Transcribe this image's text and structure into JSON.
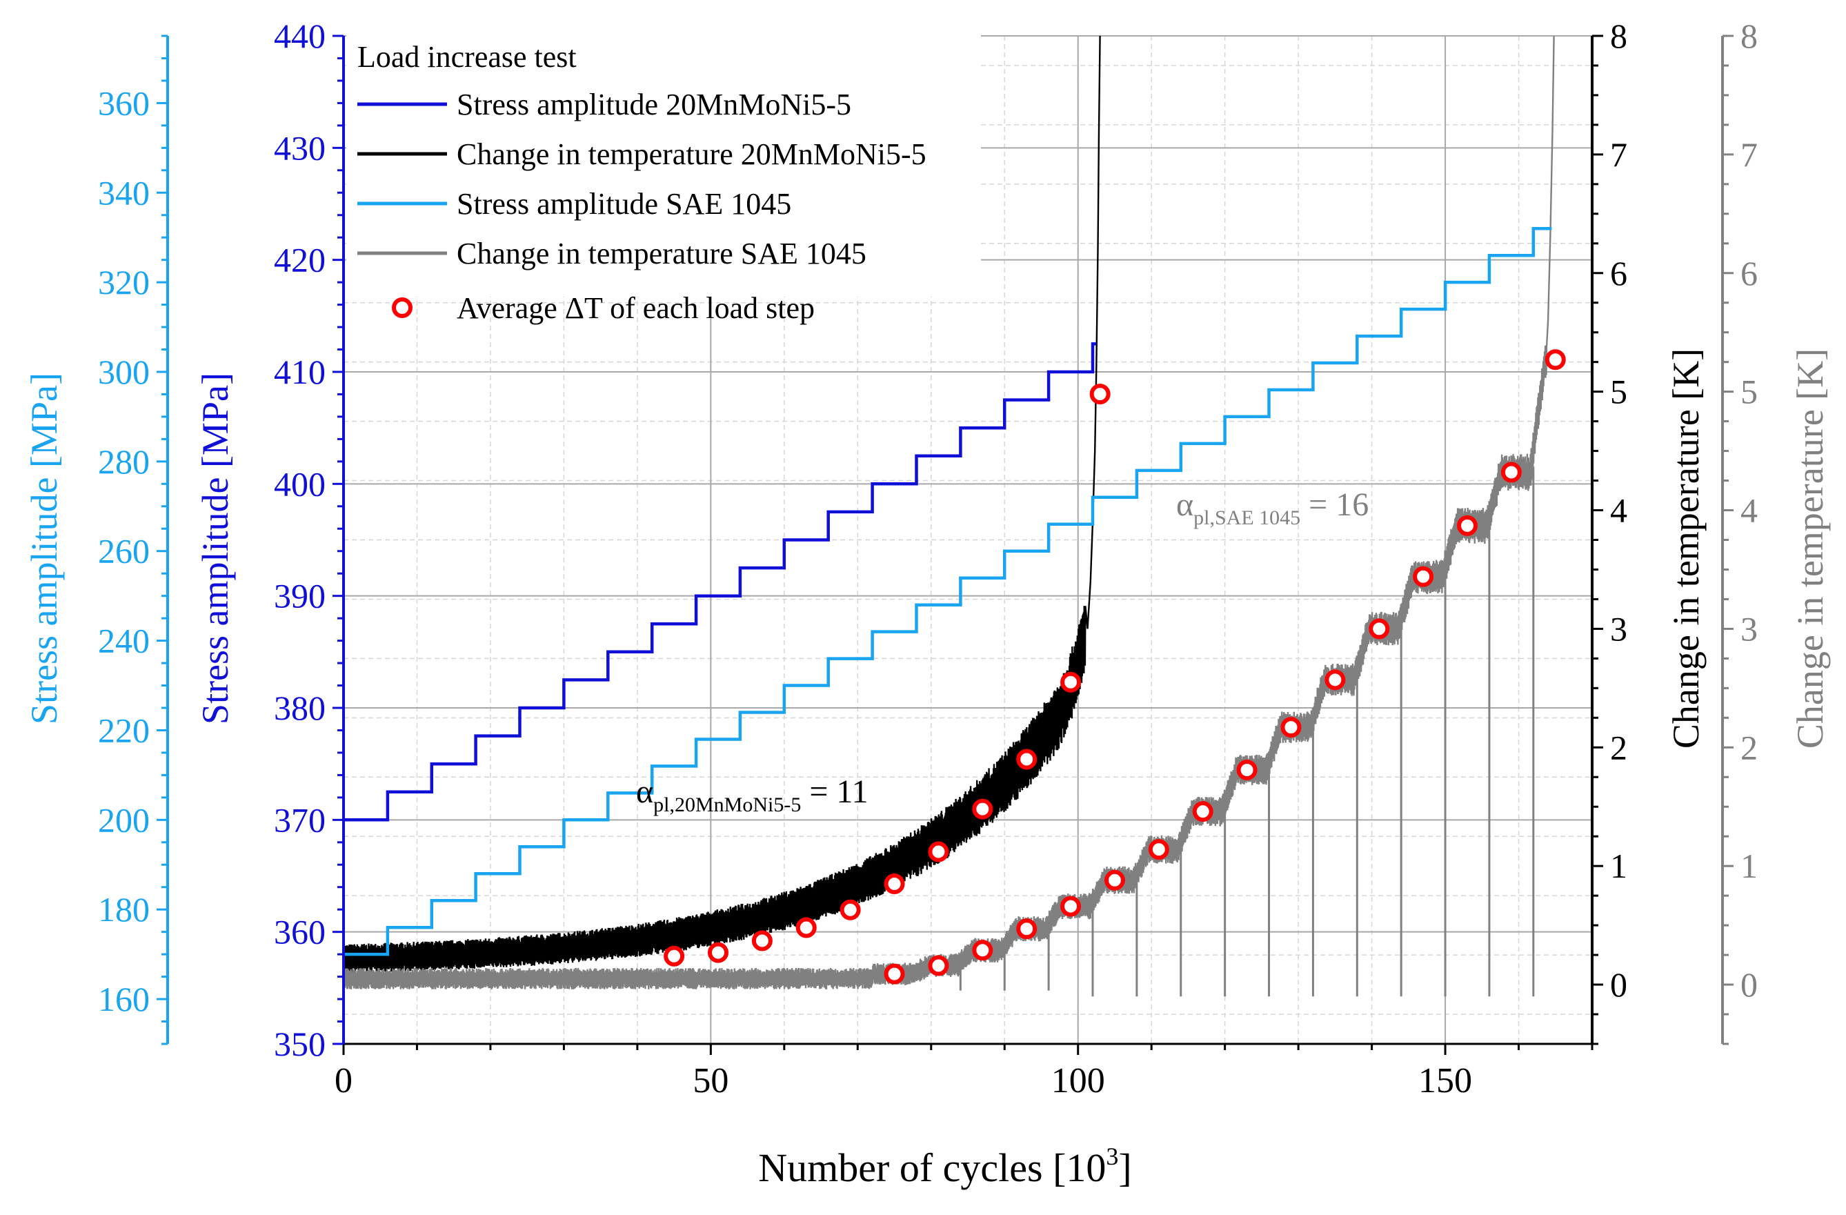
{
  "chart_data": {
    "type": "line",
    "legend_title": "Load increase test",
    "legend_position": "top-left",
    "grid": true,
    "xlabel": "Number of cycles [10",
    "xlabel_sup": "3",
    "xlabel_end": "]",
    "xlim": [
      0,
      170
    ],
    "xticks": [
      "0",
      "50",
      "100",
      "150"
    ],
    "axes": {
      "left_outer": {
        "label": "Stress amplitude [MPa]",
        "lim": [
          150,
          375
        ],
        "ticks": [
          "160",
          "180",
          "200",
          "220",
          "240",
          "260",
          "280",
          "300",
          "320",
          "340",
          "360"
        ],
        "color": "#18a4f0"
      },
      "left_inner": {
        "label": "Stress amplitude [MPa]",
        "lim": [
          350,
          440
        ],
        "ticks": [
          "350",
          "360",
          "370",
          "380",
          "390",
          "400",
          "410",
          "420",
          "430",
          "440"
        ],
        "color": "#0f0fd8"
      },
      "right_inner": {
        "label": "Change in temperature [K]",
        "lim": [
          -0.5,
          8
        ],
        "ticks": [
          "0",
          "1",
          "2",
          "3",
          "4",
          "5",
          "6",
          "7",
          "8"
        ],
        "color": "#000000"
      },
      "right_outer": {
        "label": "Change in temperature [K]",
        "lim": [
          -0.5,
          8
        ],
        "ticks": [
          "0",
          "1",
          "2",
          "3",
          "4",
          "5",
          "6",
          "7",
          "8"
        ],
        "color": "#808080"
      }
    },
    "series": [
      {
        "name": "Stress amplitude 20MnMoNi5-5",
        "axis": "left_inner",
        "color": "#0f0fd8",
        "step_x": [
          0,
          6,
          12,
          18,
          24,
          30,
          36,
          42,
          48,
          54,
          60,
          66,
          72,
          78,
          84,
          90,
          96,
          102
        ],
        "step_y": [
          370,
          372.5,
          375,
          377.5,
          380,
          382.5,
          385,
          387.5,
          390,
          392.5,
          395,
          397.5,
          400,
          402.5,
          405,
          407.5,
          410,
          412.5
        ],
        "end_x": 102.5
      },
      {
        "name": "Change in temperature 20MnMoNi5-5",
        "axis": "right_inner",
        "color": "#000000"
      },
      {
        "name": "Stress amplitude SAE 1045",
        "axis": "left_outer",
        "color": "#18a4f0",
        "step_x": [
          0,
          6,
          12,
          18,
          24,
          30,
          36,
          42,
          48,
          54,
          60,
          66,
          72,
          78,
          84,
          90,
          96,
          102,
          108,
          114,
          120,
          126,
          132,
          138,
          144,
          150,
          156,
          162
        ],
        "step_y": [
          170,
          176,
          182,
          188,
          194,
          200,
          206,
          212,
          218,
          224,
          230,
          236,
          242,
          248,
          254,
          260,
          266,
          272,
          278,
          284,
          290,
          296,
          302,
          308,
          314,
          320,
          326,
          332
        ],
        "end_x": 164.5
      },
      {
        "name": "Change in temperature SAE 1045",
        "axis": "right_outer",
        "color": "#808080"
      },
      {
        "name": "Average ΔT of each load step",
        "color": "#ff0000",
        "points_mn": [
          [
            45,
            0.24
          ],
          [
            51,
            0.27
          ],
          [
            57,
            0.37
          ],
          [
            63,
            0.48
          ],
          [
            69,
            0.63
          ],
          [
            75,
            0.85
          ],
          [
            81,
            1.12
          ],
          [
            87,
            1.48
          ],
          [
            93,
            1.9
          ],
          [
            99,
            2.55
          ],
          [
            103,
            4.98
          ]
        ],
        "points_sae": [
          [
            75,
            0.09
          ],
          [
            81,
            0.16
          ],
          [
            87,
            0.29
          ],
          [
            93,
            0.47
          ],
          [
            99,
            0.66
          ],
          [
            105,
            0.88
          ],
          [
            111,
            1.14
          ],
          [
            117,
            1.46
          ],
          [
            123,
            1.81
          ],
          [
            129,
            2.17
          ],
          [
            135,
            2.57
          ],
          [
            141,
            3.0
          ],
          [
            147,
            3.44
          ],
          [
            153,
            3.87
          ],
          [
            159,
            4.32
          ],
          [
            165,
            5.27
          ]
        ]
      }
    ],
    "annotations": [
      {
        "text": "α",
        "sub": "pl,20MnMoNi5-5",
        "rest": " = 11",
        "color": "#000000"
      },
      {
        "text": "α",
        "sub": "pl,SAE 1045",
        "rest": " = 16",
        "color": "#808080"
      }
    ]
  }
}
